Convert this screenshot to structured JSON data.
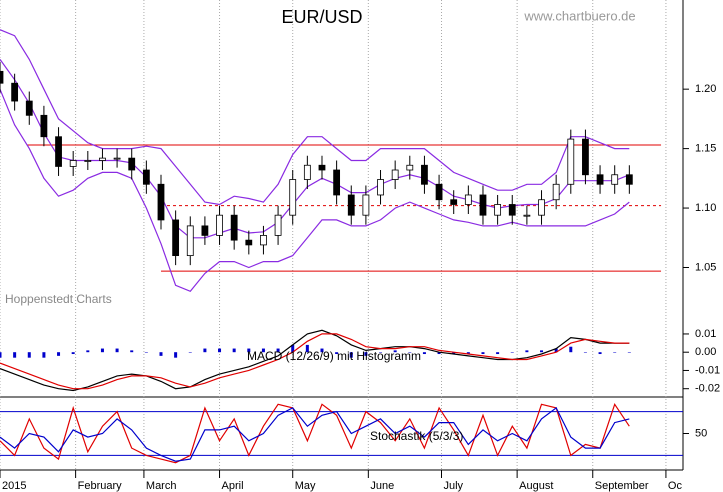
{
  "chart_data": [
    {
      "type": "candlestick",
      "title": "EUR/USD",
      "source": "www.chartbuero.de",
      "annotation": "Hoppenstedt Charts",
      "x": [
        0,
        6,
        12,
        18,
        24,
        30,
        36,
        42,
        48,
        54,
        60,
        66,
        72,
        78,
        84,
        90,
        96,
        102,
        108,
        114,
        120,
        126,
        132,
        138,
        144,
        150,
        156,
        162,
        168,
        174,
        180,
        186,
        192,
        198,
        204,
        210,
        216,
        222,
        228,
        234,
        240,
        246,
        252,
        258
      ],
      "open": [
        1.215,
        1.205,
        1.19,
        1.178,
        1.16,
        1.135,
        1.14,
        1.14,
        1.142,
        1.142,
        1.132,
        1.12,
        1.09,
        1.06,
        1.085,
        1.077,
        1.094,
        1.073,
        1.069,
        1.077,
        1.094,
        1.124,
        1.136,
        1.132,
        1.111,
        1.094,
        1.111,
        1.124,
        1.132,
        1.136,
        1.12,
        1.107,
        1.103,
        1.111,
        1.094,
        1.103,
        1.094,
        1.094,
        1.107,
        1.12,
        1.158,
        1.128,
        1.12,
        1.128
      ],
      "high": [
        1.223,
        1.213,
        1.198,
        1.186,
        1.168,
        1.148,
        1.148,
        1.15,
        1.15,
        1.15,
        1.14,
        1.128,
        1.098,
        1.093,
        1.093,
        1.102,
        1.102,
        1.081,
        1.085,
        1.102,
        1.132,
        1.144,
        1.144,
        1.14,
        1.119,
        1.119,
        1.132,
        1.14,
        1.144,
        1.144,
        1.128,
        1.115,
        1.119,
        1.119,
        1.111,
        1.111,
        1.102,
        1.115,
        1.128,
        1.166,
        1.166,
        1.136,
        1.136,
        1.136
      ],
      "low": [
        1.197,
        1.182,
        1.17,
        1.152,
        1.127,
        1.127,
        1.132,
        1.132,
        1.134,
        1.124,
        1.112,
        1.082,
        1.052,
        1.052,
        1.069,
        1.069,
        1.065,
        1.061,
        1.061,
        1.069,
        1.086,
        1.116,
        1.124,
        1.103,
        1.086,
        1.086,
        1.103,
        1.116,
        1.124,
        1.112,
        1.099,
        1.095,
        1.095,
        1.086,
        1.086,
        1.086,
        1.086,
        1.086,
        1.099,
        1.112,
        1.12,
        1.112,
        1.112,
        1.112
      ],
      "close": [
        1.205,
        1.19,
        1.178,
        1.16,
        1.135,
        1.14,
        1.14,
        1.142,
        1.142,
        1.132,
        1.12,
        1.09,
        1.06,
        1.085,
        1.077,
        1.094,
        1.073,
        1.069,
        1.077,
        1.094,
        1.124,
        1.136,
        1.132,
        1.111,
        1.094,
        1.111,
        1.124,
        1.132,
        1.136,
        1.12,
        1.107,
        1.103,
        1.111,
        1.094,
        1.103,
        1.094,
        1.094,
        1.107,
        1.12,
        1.158,
        1.128,
        1.12,
        1.128,
        1.12
      ],
      "up_color": "#ffffff",
      "down_color": "#000000",
      "series": [
        {
          "color": "#8a2be2",
          "values": [
            1.25,
            1.245,
            1.225,
            1.2,
            1.175,
            1.165,
            1.155,
            1.15,
            1.15,
            1.15,
            1.152,
            1.15,
            1.135,
            1.12,
            1.105,
            1.103,
            1.11,
            1.108,
            1.105,
            1.12,
            1.145,
            1.16,
            1.16,
            1.15,
            1.14,
            1.14,
            1.15,
            1.15,
            1.15,
            1.15,
            1.14,
            1.13,
            1.125,
            1.12,
            1.115,
            1.115,
            1.12,
            1.12,
            1.13,
            1.16,
            1.16,
            1.155,
            1.15,
            1.15
          ]
        },
        {
          "color": "#8a2be2",
          "values": [
            1.225,
            1.208,
            1.188,
            1.163,
            1.143,
            1.14,
            1.14,
            1.14,
            1.14,
            1.138,
            1.126,
            1.11,
            1.085,
            1.075,
            1.075,
            1.079,
            1.083,
            1.079,
            1.08,
            1.088,
            1.103,
            1.118,
            1.125,
            1.12,
            1.113,
            1.113,
            1.12,
            1.125,
            1.128,
            1.125,
            1.118,
            1.11,
            1.107,
            1.103,
            1.1,
            1.102,
            1.103,
            1.103,
            1.108,
            1.123,
            1.123,
            1.123,
            1.123,
            1.128
          ]
        },
        {
          "color": "#8a2be2",
          "values": [
            1.2,
            1.17,
            1.15,
            1.125,
            1.11,
            1.115,
            1.125,
            1.13,
            1.13,
            1.125,
            1.1,
            1.07,
            1.035,
            1.03,
            1.045,
            1.055,
            1.055,
            1.05,
            1.055,
            1.055,
            1.06,
            1.075,
            1.09,
            1.09,
            1.085,
            1.085,
            1.09,
            1.1,
            1.105,
            1.1,
            1.095,
            1.09,
            1.088,
            1.085,
            1.085,
            1.088,
            1.085,
            1.085,
            1.085,
            1.085,
            1.085,
            1.09,
            1.095,
            1.105
          ]
        }
      ],
      "reference_lines": [
        {
          "value": 1.153,
          "from": 11,
          "to": 271,
          "style": "solid",
          "color": "#e00000"
        },
        {
          "value": 1.102,
          "from": 66,
          "to": 271,
          "style": "dashed",
          "color": "#e00000"
        },
        {
          "value": 1.047,
          "from": 66,
          "to": 271,
          "style": "solid",
          "color": "#e00000"
        }
      ],
      "xlim": [
        0,
        280
      ],
      "ylim": [
        1.005,
        1.275
      ],
      "yticks": [
        1.05,
        {
          "value": 1.1,
          "label": "1.10"
        },
        1.15,
        {
          "value": 1.2,
          "label": "1.20"
        }
      ]
    },
    {
      "type": "macd",
      "title": "MACD (12/26/9) mit Histogramm",
      "x": [
        0,
        6,
        12,
        18,
        24,
        30,
        36,
        42,
        48,
        54,
        60,
        66,
        72,
        78,
        84,
        90,
        96,
        102,
        108,
        114,
        120,
        126,
        132,
        138,
        144,
        150,
        156,
        162,
        168,
        174,
        180,
        186,
        192,
        198,
        204,
        210,
        216,
        222,
        228,
        234,
        240,
        246,
        252,
        258
      ],
      "series": [
        {
          "color": "#000000",
          "values": [
            -0.009,
            -0.012,
            -0.015,
            -0.018,
            -0.02,
            -0.021,
            -0.019,
            -0.016,
            -0.013,
            -0.012,
            -0.013,
            -0.016,
            -0.02,
            -0.019,
            -0.015,
            -0.012,
            -0.01,
            -0.008,
            -0.005,
            -0.002,
            0.004,
            0.01,
            0.012,
            0.009,
            0.004,
            0.001,
            0.002,
            0.003,
            0.003,
            0.002,
            0.0,
            -0.001,
            -0.002,
            -0.003,
            -0.004,
            -0.004,
            -0.003,
            -0.001,
            0.002,
            0.008,
            0.007,
            0.005,
            0.005,
            0.005
          ]
        },
        {
          "color": "#e00000",
          "values": [
            -0.006,
            -0.009,
            -0.012,
            -0.015,
            -0.018,
            -0.02,
            -0.02,
            -0.018,
            -0.015,
            -0.013,
            -0.013,
            -0.014,
            -0.017,
            -0.019,
            -0.017,
            -0.014,
            -0.012,
            -0.01,
            -0.007,
            -0.004,
            0.0,
            0.006,
            0.01,
            0.01,
            0.007,
            0.003,
            0.002,
            0.002,
            0.003,
            0.003,
            0.001,
            0.0,
            -0.001,
            -0.002,
            -0.003,
            -0.004,
            -0.004,
            -0.002,
            0.0,
            0.005,
            0.007,
            0.006,
            0.005,
            0.005
          ]
        }
      ],
      "histogram": {
        "color": "#0000cc",
        "values": [
          -0.003,
          -0.003,
          -0.003,
          -0.003,
          -0.002,
          -0.001,
          0.001,
          0.002,
          0.002,
          0.001,
          0,
          -0.002,
          -0.003,
          0,
          0.002,
          0.002,
          0.002,
          0.002,
          0.002,
          0.002,
          0.004,
          0.004,
          0.002,
          -0.001,
          -0.003,
          -0.002,
          0,
          0.001,
          0,
          -0.001,
          -0.001,
          -0.001,
          -0.001,
          -0.001,
          -0.001,
          0,
          0.001,
          0.001,
          0.002,
          0.003,
          0,
          -0.001,
          0,
          0
        ]
      },
      "xlim": [
        0,
        280
      ],
      "ylim": [
        -0.024,
        0.016
      ],
      "yticks": [
        -0.02,
        -0.01,
        {
          "value": 0,
          "label": "0.00"
        },
        0.01
      ]
    },
    {
      "type": "stochastic",
      "title": "Stochastik (5/3/3)",
      "x": [
        0,
        6,
        12,
        18,
        24,
        30,
        36,
        42,
        48,
        54,
        60,
        66,
        72,
        78,
        84,
        90,
        96,
        102,
        108,
        114,
        120,
        126,
        132,
        138,
        144,
        150,
        156,
        162,
        168,
        174,
        180,
        186,
        192,
        198,
        204,
        210,
        216,
        222,
        228,
        234,
        240,
        246,
        252,
        258
      ],
      "series": [
        {
          "color": "#e00000",
          "values": [
            40,
            20,
            70,
            30,
            15,
            85,
            25,
            60,
            80,
            30,
            20,
            15,
            10,
            20,
            85,
            40,
            70,
            20,
            60,
            90,
            85,
            40,
            90,
            75,
            30,
            80,
            65,
            40,
            70,
            30,
            85,
            55,
            20,
            75,
            20,
            60,
            30,
            90,
            85,
            20,
            35,
            30,
            90,
            60
          ]
        },
        {
          "color": "#0000cc",
          "values": [
            45,
            30,
            50,
            45,
            25,
            55,
            45,
            50,
            70,
            55,
            30,
            20,
            12,
            15,
            55,
            55,
            60,
            40,
            50,
            75,
            85,
            60,
            75,
            80,
            50,
            60,
            70,
            50,
            60,
            45,
            65,
            65,
            35,
            55,
            40,
            50,
            40,
            70,
            85,
            45,
            30,
            30,
            65,
            70
          ]
        }
      ],
      "reference_lines": [
        {
          "value": 80,
          "color": "#0000cc"
        },
        {
          "value": 20,
          "color": "#0000cc"
        }
      ],
      "xlim": [
        0,
        280
      ],
      "ylim": [
        0,
        100
      ],
      "yticks": [
        50
      ],
      "xticks": [
        {
          "value": 0,
          "label": "2015"
        },
        {
          "value": 31,
          "label": "February"
        },
        {
          "value": 59,
          "label": "March"
        },
        {
          "value": 90,
          "label": "April"
        },
        {
          "value": 120,
          "label": "May"
        },
        {
          "value": 151,
          "label": "June"
        },
        {
          "value": 181,
          "label": "July"
        },
        {
          "value": 212,
          "label": "August"
        },
        {
          "value": 243,
          "label": "September"
        },
        {
          "value": 273,
          "label": "Oc"
        }
      ],
      "grid": true
    }
  ]
}
